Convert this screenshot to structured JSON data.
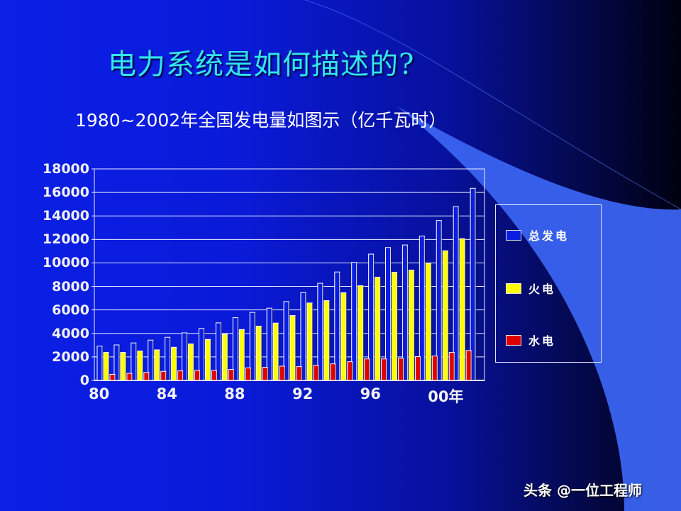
{
  "slide": {
    "title": "电力系统是如何描述的?",
    "subtitle": "1980~2002年全国发电量如图示（亿千瓦时）",
    "watermark": "头条 @一位工程师"
  },
  "colors": {
    "background_left": "#0b1fe6",
    "background_right": "#000010",
    "title": "#33e6ee",
    "total": "#0a1ee0",
    "thermal": "#ffff00",
    "hydro": "#e00000",
    "grid": "#ffffff",
    "decor_wedge": "#3a63f0"
  },
  "chart_data": {
    "type": "bar",
    "title": "1980~2002年全国发电量如图示（亿千瓦时）",
    "xlabel": "",
    "ylabel": "亿千瓦时",
    "ylim": [
      0,
      18000
    ],
    "yticks": [
      "0",
      "2000",
      "4000",
      "6000",
      "8000",
      "10000",
      "12000",
      "14000",
      "16000",
      "18000"
    ],
    "xtick_labels": [
      {
        "label": "80",
        "index": 0
      },
      {
        "label": "84",
        "index": 4
      },
      {
        "label": "88",
        "index": 8
      },
      {
        "label": "92",
        "index": 12
      },
      {
        "label": "96",
        "index": 16
      },
      {
        "label": "00年",
        "index": 20
      }
    ],
    "grid": true,
    "legend_position": "right",
    "categories": [
      "1980",
      "1981",
      "1982",
      "1983",
      "1984",
      "1985",
      "1986",
      "1987",
      "1988",
      "1989",
      "1990",
      "1991",
      "1992",
      "1993",
      "1994",
      "1995",
      "1996",
      "1997",
      "1998",
      "1999",
      "2000",
      "2001",
      "2002"
    ],
    "series": [
      {
        "name": "总发电",
        "color": "#0a1ee0",
        "values": [
          2920,
          3020,
          3190,
          3430,
          3670,
          4050,
          4420,
          4900,
          5340,
          5790,
          6150,
          6710,
          7480,
          8270,
          9230,
          10040,
          10750,
          11310,
          11530,
          12280,
          13610,
          14800,
          16350
        ]
      },
      {
        "name": "火电",
        "color": "#ffff00",
        "values": [
          2380,
          2380,
          2500,
          2600,
          2820,
          3100,
          3490,
          3930,
          4330,
          4620,
          4880,
          5520,
          6590,
          6790,
          7460,
          8060,
          8790,
          9210,
          9390,
          9980,
          11030,
          12060,
          null
        ]
      },
      {
        "name": "水电",
        "color": "#e00000",
        "values": [
          520,
          600,
          670,
          770,
          810,
          850,
          850,
          930,
          1070,
          1110,
          1210,
          1170,
          1290,
          1410,
          1590,
          1830,
          1830,
          1890,
          2020,
          2080,
          2380,
          2540,
          null
        ]
      }
    ]
  },
  "legend": {
    "items": [
      {
        "label": "总发电",
        "color": "#0a1ee0"
      },
      {
        "label": "火电",
        "color": "#ffff00"
      },
      {
        "label": "水电",
        "color": "#e00000"
      }
    ]
  }
}
